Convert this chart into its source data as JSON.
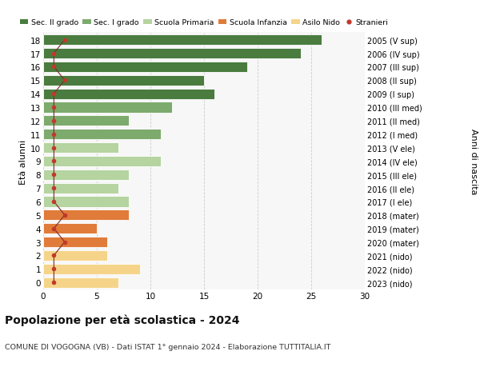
{
  "ages": [
    18,
    17,
    16,
    15,
    14,
    13,
    12,
    11,
    10,
    9,
    8,
    7,
    6,
    5,
    4,
    3,
    2,
    1,
    0
  ],
  "values": [
    26,
    24,
    19,
    15,
    16,
    12,
    8,
    11,
    7,
    11,
    8,
    7,
    8,
    8,
    5,
    6,
    6,
    9,
    7
  ],
  "stranieri": [
    2,
    1,
    1,
    2,
    1,
    1,
    1,
    1,
    1,
    1,
    1,
    1,
    1,
    2,
    1,
    2,
    1,
    1,
    1
  ],
  "right_labels": [
    "2005 (V sup)",
    "2006 (IV sup)",
    "2007 (III sup)",
    "2008 (II sup)",
    "2009 (I sup)",
    "2010 (III med)",
    "2011 (II med)",
    "2012 (I med)",
    "2013 (V ele)",
    "2014 (IV ele)",
    "2015 (III ele)",
    "2016 (II ele)",
    "2017 (I ele)",
    "2018 (mater)",
    "2019 (mater)",
    "2020 (mater)",
    "2021 (nido)",
    "2022 (nido)",
    "2023 (nido)"
  ],
  "bar_colors": [
    "#4a7c3f",
    "#4a7c3f",
    "#4a7c3f",
    "#4a7c3f",
    "#4a7c3f",
    "#7daa6d",
    "#7daa6d",
    "#7daa6d",
    "#b5d4a0",
    "#b5d4a0",
    "#b5d4a0",
    "#b5d4a0",
    "#b5d4a0",
    "#e07b3a",
    "#e07b3a",
    "#e07b3a",
    "#f5d48a",
    "#f5d48a",
    "#f5d48a"
  ],
  "legend_labels": [
    "Sec. II grado",
    "Sec. I grado",
    "Scuola Primaria",
    "Scuola Infanzia",
    "Asilo Nido",
    "Stranieri"
  ],
  "legend_colors": [
    "#4a7c3f",
    "#7daa6d",
    "#b5d4a0",
    "#e07b3a",
    "#f5d48a",
    "#c0392b"
  ],
  "title": "Popolazione per età scolastica - 2024",
  "subtitle": "COMUNE DI VOGOGNA (VB) - Dati ISTAT 1° gennaio 2024 - Elaborazione TUTTITALIA.IT",
  "ylabel_left": "Età alunni",
  "ylabel_right": "Anni di nascita",
  "xlim": [
    0,
    30
  ],
  "xticks": [
    0,
    5,
    10,
    15,
    20,
    25,
    30
  ],
  "bar_height": 0.78,
  "stranieri_color": "#c0392b",
  "stranieri_line_color": "#7a2a2a",
  "background_color": "#f7f7f7",
  "grid_color": "#cccccc",
  "fig_bg": "#ffffff"
}
